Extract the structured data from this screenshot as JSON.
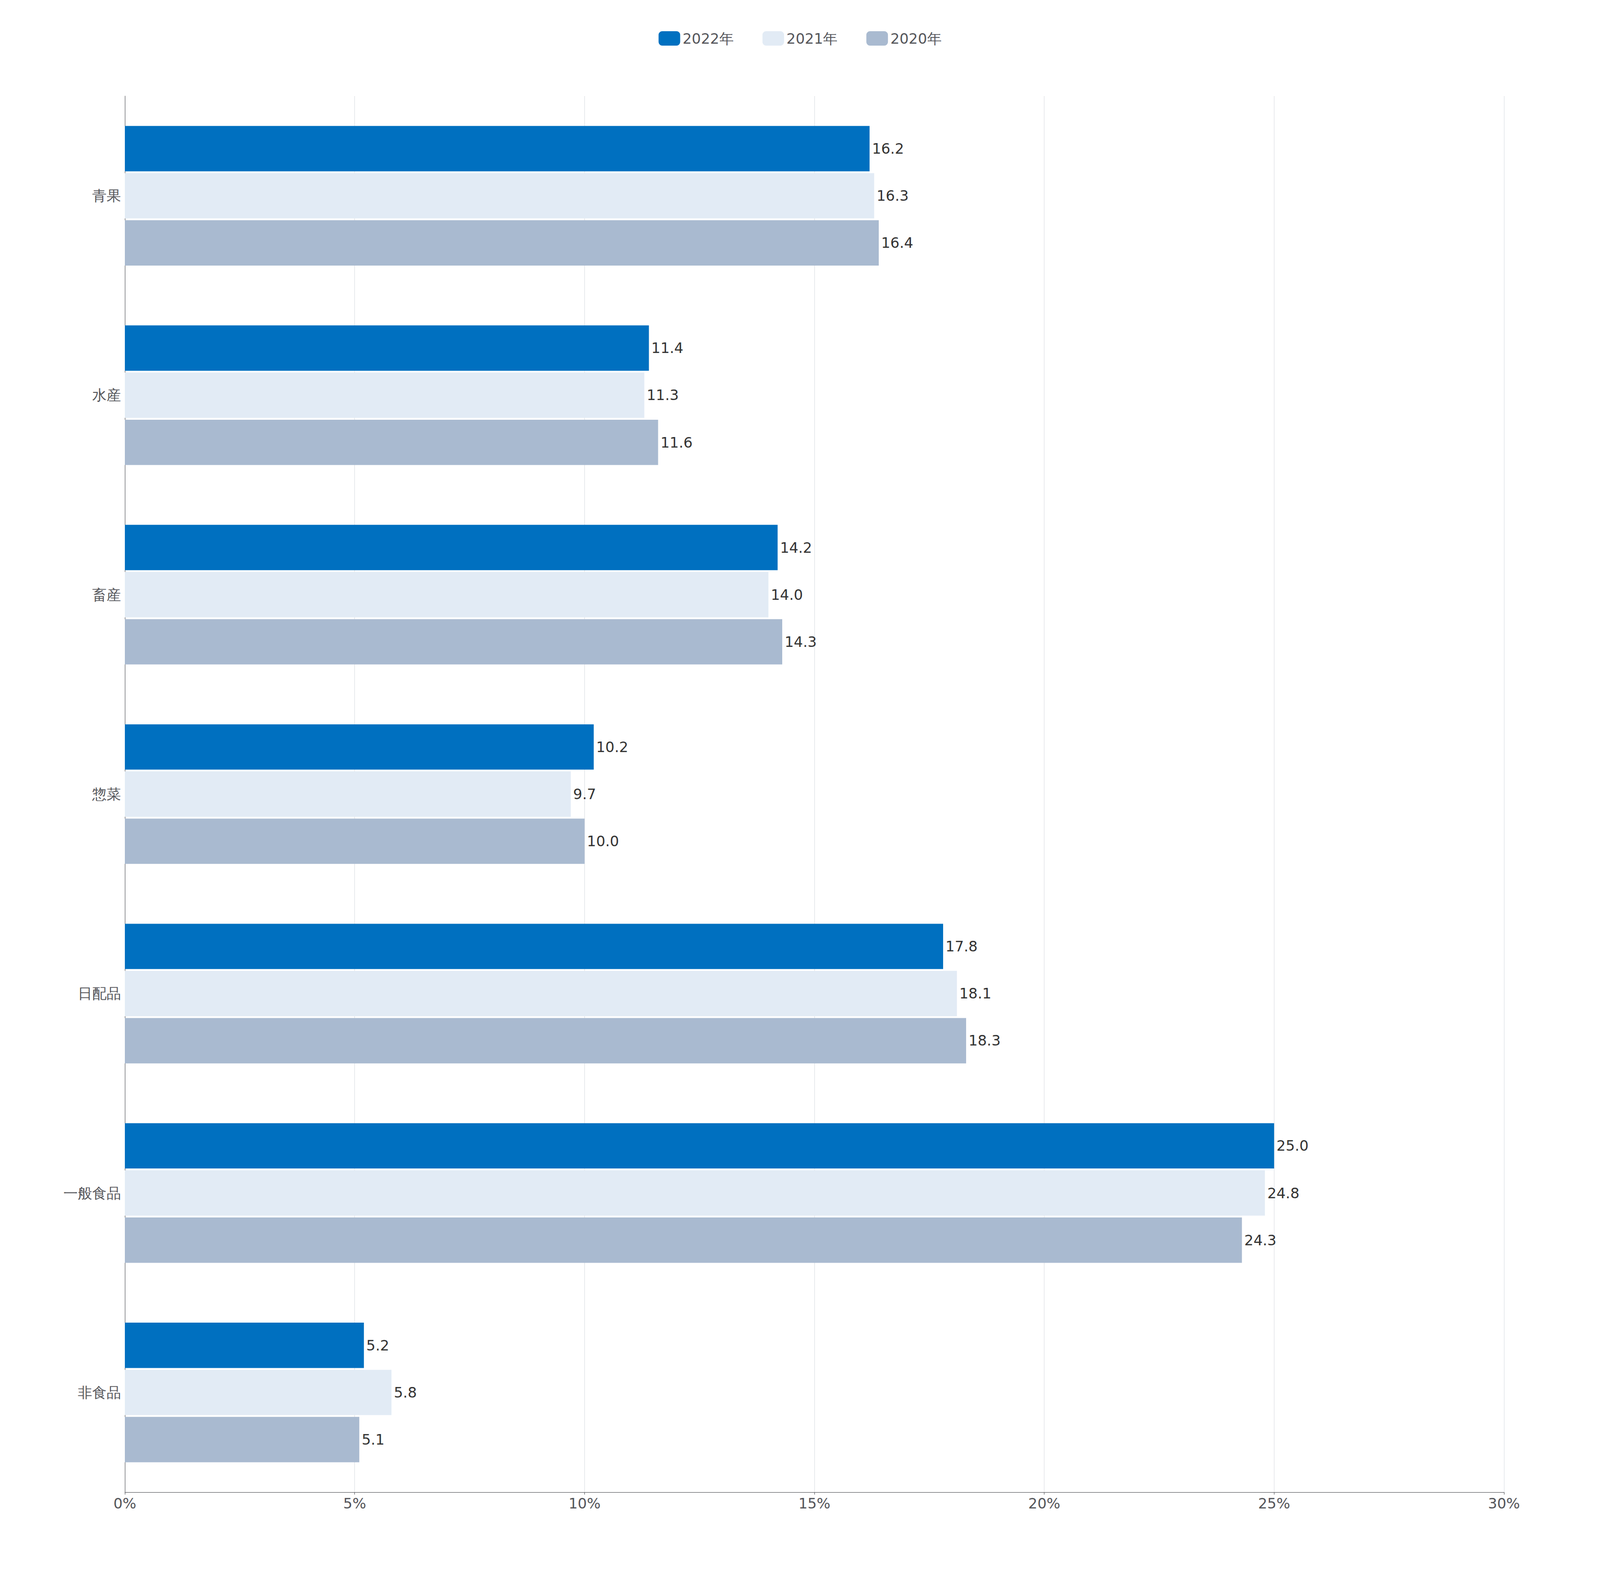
{
  "chart_data": {
    "type": "bar",
    "orientation": "horizontal",
    "categories": [
      "青果",
      "水産",
      "畜産",
      "惣菜",
      "日配品",
      "一般食品",
      "非食品"
    ],
    "series": [
      {
        "name": "2022年",
        "color": "#0070C0",
        "values": [
          16.2,
          11.4,
          14.2,
          10.2,
          17.8,
          25.0,
          5.2
        ],
        "value_labels": [
          "16.2",
          "11.4",
          "14.2",
          "10.2",
          "17.8",
          "25.0",
          "5.2"
        ]
      },
      {
        "name": "2021年",
        "color": "#E2EBF5",
        "values": [
          16.3,
          11.3,
          14.0,
          9.7,
          18.1,
          24.8,
          5.8
        ],
        "value_labels": [
          "16.3",
          "11.3",
          "14.0",
          "9.7",
          "18.1",
          "24.8",
          "5.8"
        ]
      },
      {
        "name": "2020年",
        "color": "#A9BAD0",
        "values": [
          16.4,
          11.6,
          14.3,
          10.0,
          18.3,
          24.3,
          5.1
        ],
        "value_labels": [
          "16.4",
          "11.6",
          "14.3",
          "10.0",
          "18.3",
          "24.3",
          "5.1"
        ]
      }
    ],
    "xlim": [
      0,
      30
    ],
    "xticks": [
      {
        "value": 0,
        "label": "0%"
      },
      {
        "value": 5,
        "label": "5%"
      },
      {
        "value": 10,
        "label": "10%"
      },
      {
        "value": 15,
        "label": "15%"
      },
      {
        "value": 20,
        "label": "20%"
      },
      {
        "value": 25,
        "label": "25%"
      },
      {
        "value": 30,
        "label": "30%"
      }
    ],
    "grid": true,
    "legend": "top",
    "data_labels": true
  }
}
